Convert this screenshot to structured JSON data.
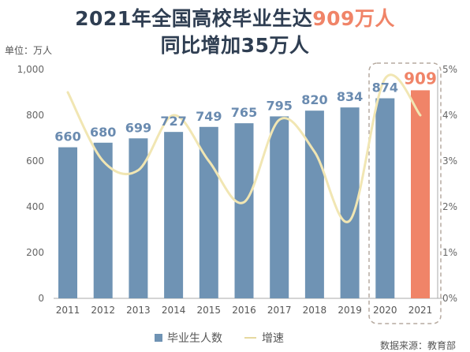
{
  "title": {
    "line1_prefix": "2021年全国高校毕业生达",
    "line1_highlight": "909万人",
    "line2": "同比增加35万人"
  },
  "chart_data": {
    "type": "bar",
    "categories": [
      "2011",
      "2012",
      "2013",
      "2014",
      "2015",
      "2016",
      "2017",
      "2018",
      "2019",
      "2020",
      "2021"
    ],
    "series": [
      {
        "name": "毕业生人数",
        "type": "bar",
        "values": [
          660,
          680,
          699,
          727,
          749,
          765,
          795,
          820,
          834,
          874,
          909
        ]
      },
      {
        "name": "增速",
        "type": "line",
        "axis": "right",
        "values": [
          4.5,
          3.0,
          2.8,
          4.0,
          3.0,
          2.1,
          3.9,
          3.2,
          1.7,
          4.8,
          4.0
        ]
      }
    ],
    "y_unit": "单位：万人",
    "ylim": [
      0,
      1000
    ],
    "yticks": [
      "0",
      "200",
      "400",
      "600",
      "800",
      "1,000"
    ],
    "y2lim": [
      0,
      5
    ],
    "y2ticks": [
      "0%",
      "1%",
      "2%",
      "3%",
      "4%",
      "5%"
    ],
    "highlight_category": "2021",
    "legend_position": "bottom",
    "colors": {
      "bar": "#6f93b4",
      "highlight_bar": "#f08468",
      "line": "#f1e6b3",
      "title": "#2f3e52"
    }
  },
  "source": "数据来源：教育部"
}
